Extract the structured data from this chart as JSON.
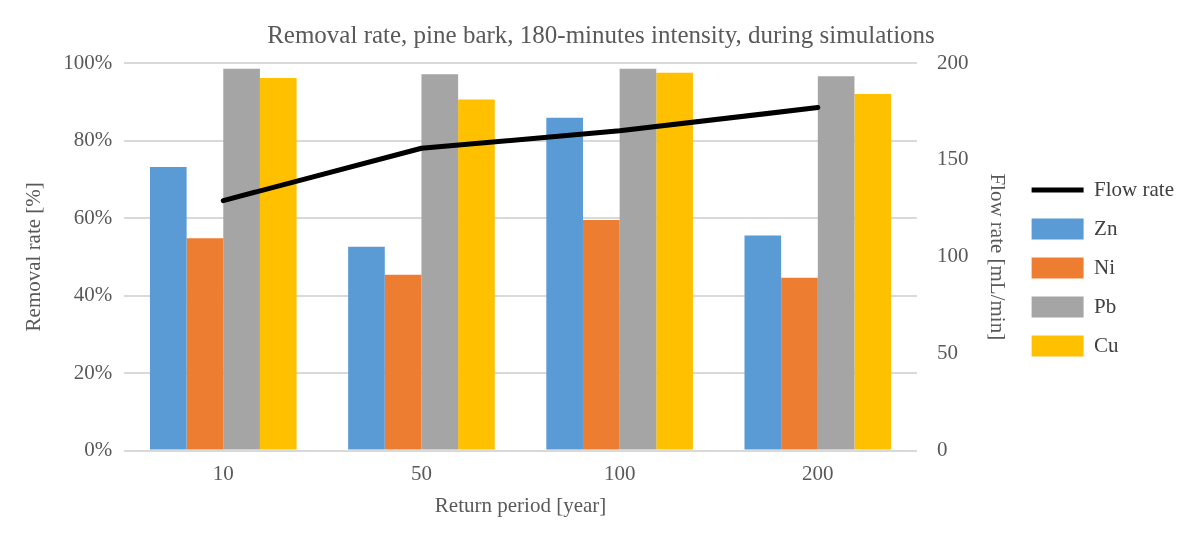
{
  "chart_data": {
    "type": "bar",
    "title": "Removal rate, pine bark, 180-minutes intensity, during simulations",
    "xlabel": "Return period [year]",
    "ylabel": "Removal rate [%]",
    "y2label": "Flow rate [mL/min]",
    "categories": [
      "10",
      "50",
      "100",
      "200"
    ],
    "series": [
      {
        "name": "Zn",
        "color": "#5b9bd5",
        "values": [
          73.2,
          52.6,
          85.9,
          55.5
        ]
      },
      {
        "name": "Ni",
        "color": "#ed7d31",
        "values": [
          54.8,
          45.4,
          59.5,
          44.6
        ]
      },
      {
        "name": "Pb",
        "color": "#a5a5a5",
        "values": [
          98.5,
          97.1,
          98.5,
          96.6
        ]
      },
      {
        "name": "Cu",
        "color": "#ffc000",
        "values": [
          96.1,
          90.6,
          97.5,
          92
        ]
      },
      {
        "name": "Flow rate",
        "type": "line",
        "axis": "y2",
        "color": "#000000",
        "values": [
          129,
          156,
          165,
          177
        ]
      }
    ],
    "ylim": [
      0,
      100
    ],
    "yticks": [
      {
        "value": 0,
        "label": "0%"
      },
      {
        "value": 20,
        "label": "20%"
      },
      {
        "value": 40,
        "label": "40%"
      },
      {
        "value": 60,
        "label": "60%"
      },
      {
        "value": 80,
        "label": "80%"
      },
      {
        "value": 100,
        "label": "100%"
      }
    ],
    "y2lim": [
      0,
      200
    ],
    "y2ticks": [
      0,
      50,
      100,
      150,
      200
    ],
    "grid": "y",
    "legend": "right",
    "marker": "none",
    "line_style": "solid"
  }
}
